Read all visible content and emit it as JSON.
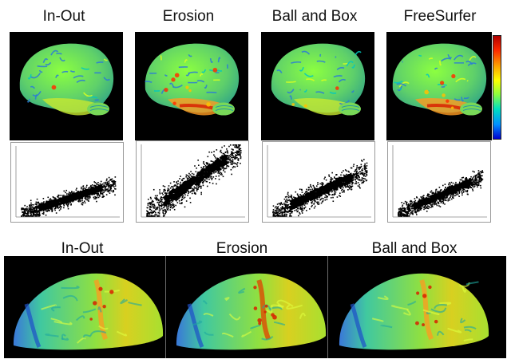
{
  "top_row": {
    "labels": [
      "In-Out",
      "Erosion",
      "Ball and Box",
      "FreeSurfer"
    ],
    "brains": [
      {
        "name": "in-out",
        "hot": 0.1
      },
      {
        "name": "erosion",
        "hot": 0.55
      },
      {
        "name": "ball-and-box",
        "hot": 0.2
      },
      {
        "name": "freesurfer",
        "hot": 0.4
      }
    ],
    "scatter": [
      {
        "name": "in-out",
        "spread": 0.2,
        "slope": 0.45
      },
      {
        "name": "erosion",
        "spread": 0.35,
        "slope": 0.95
      },
      {
        "name": "ball-and-box",
        "spread": 0.28,
        "slope": 0.65
      },
      {
        "name": "freesurfer",
        "spread": 0.2,
        "slope": 0.55
      }
    ]
  },
  "bottom_row": {
    "labels": [
      "In-Out",
      "Erosion",
      "Ball and Box"
    ],
    "brains": [
      {
        "name": "in-out",
        "hot": 0.35
      },
      {
        "name": "erosion",
        "hot": 0.6
      },
      {
        "name": "ball-and-box",
        "hot": 0.45
      }
    ]
  },
  "colormap": [
    "#b00000",
    "#ff2a00",
    "#ffa000",
    "#ffff00",
    "#8cff40",
    "#00e0c0",
    "#0090ff",
    "#0000d0"
  ]
}
